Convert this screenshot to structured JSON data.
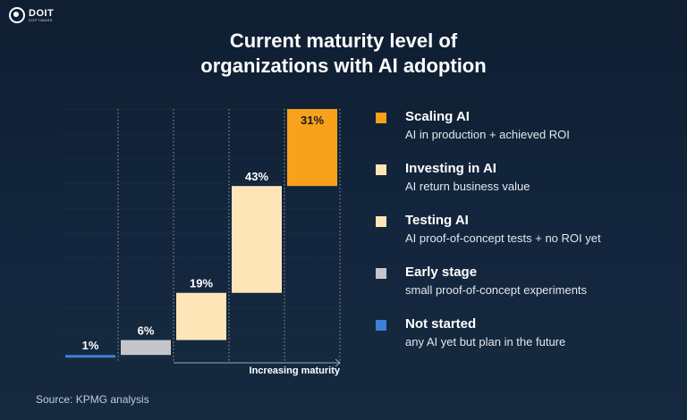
{
  "brand": {
    "name": "DOIT",
    "tagline": "SOFTWARE"
  },
  "source": "Source: KPMG analysis",
  "chart_data": {
    "type": "bar",
    "title_lines": [
      "Current maturity level of",
      "organizations with AI adoption"
    ],
    "xlabel": "Increasing maturity",
    "ylabel": "",
    "grid": true,
    "legend_placement": "right",
    "categories": [
      "Not started",
      "Early stage",
      "Testing AI",
      "Investing in AI",
      "Scaling AI"
    ],
    "values": [
      1,
      6,
      19,
      43,
      31
    ],
    "value_labels": [
      "1%",
      "6%",
      "19%",
      "43%",
      "31%"
    ],
    "colors": [
      "#3f7fd6",
      "#c4c6cb",
      "#fde5b8",
      "#fde5b8",
      "#f8a11b"
    ],
    "legend": [
      {
        "label": "Scaling AI",
        "description": "AI in production + achieved ROI",
        "color": "#f8a11b"
      },
      {
        "label": "Investing in AI",
        "description": "AI return business value",
        "color": "#fde5b8"
      },
      {
        "label": "Testing AI",
        "description": "AI proof-of-concept tests + no ROI yet",
        "color": "#fde5b8"
      },
      {
        "label": "Early stage",
        "description": "small proof-of-concept experiments",
        "color": "#c4c6cb"
      },
      {
        "label": "Not started",
        "description": "any AI yet but plan in the future",
        "color": "#3f7fd6"
      }
    ]
  }
}
